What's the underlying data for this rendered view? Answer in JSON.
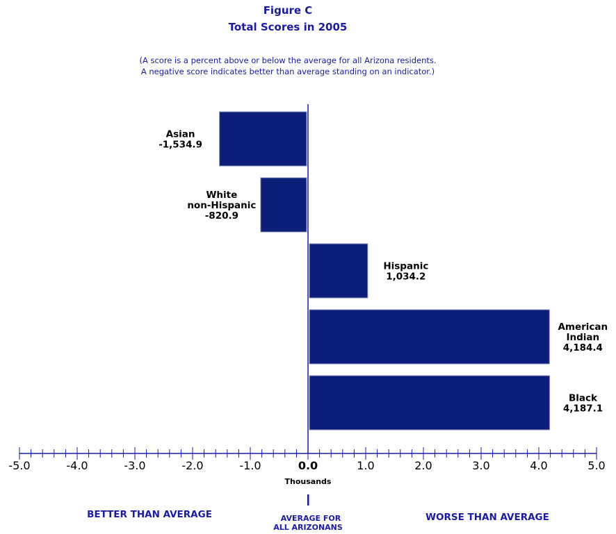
{
  "title": "Figure C",
  "subtitle": "Total Scores in 2005",
  "note_lines": [
    "(A score is a percent above or below the average for all Arizona residents.",
    "A negative score indicates better than average standing on an indicator.)"
  ],
  "colors": {
    "bar": "#0b1f7a",
    "text_blue": "#1a1aa6",
    "axis": "#1a1aa6"
  },
  "chart_data": {
    "type": "bar",
    "orientation": "horizontal",
    "categories": [
      "Asian",
      "White non-Hispanic",
      "Hispanic",
      "American Indian",
      "Black"
    ],
    "values": [
      -1534.9,
      -820.9,
      1034.2,
      4184.4,
      4187.1
    ],
    "value_labels": [
      "-1,534.9",
      "-820.9",
      "1,034.2",
      "4,184.4",
      "4,187.1"
    ],
    "category_label_lines": [
      [
        "Asian"
      ],
      [
        "White",
        "non-Hispanic"
      ],
      [
        "Hispanic"
      ],
      [
        "American",
        "Indian"
      ],
      [
        "Black"
      ]
    ],
    "x_unit": 1000,
    "xlim": [
      -5.0,
      5.0
    ],
    "x_ticks": [
      "-5.0",
      "-4.0",
      "-3.0",
      "-2.0",
      "-1.0",
      "0.0",
      "1.0",
      "2.0",
      "3.0",
      "4.0",
      "5.0"
    ],
    "xlabel": "Thousands",
    "grid": false,
    "legend": "none"
  },
  "annotations": {
    "left": "BETTER THAN AVERAGE",
    "right": "WORSE THAN AVERAGE",
    "center_lines": [
      "AVERAGE FOR",
      "ALL ARIZONANS"
    ]
  }
}
